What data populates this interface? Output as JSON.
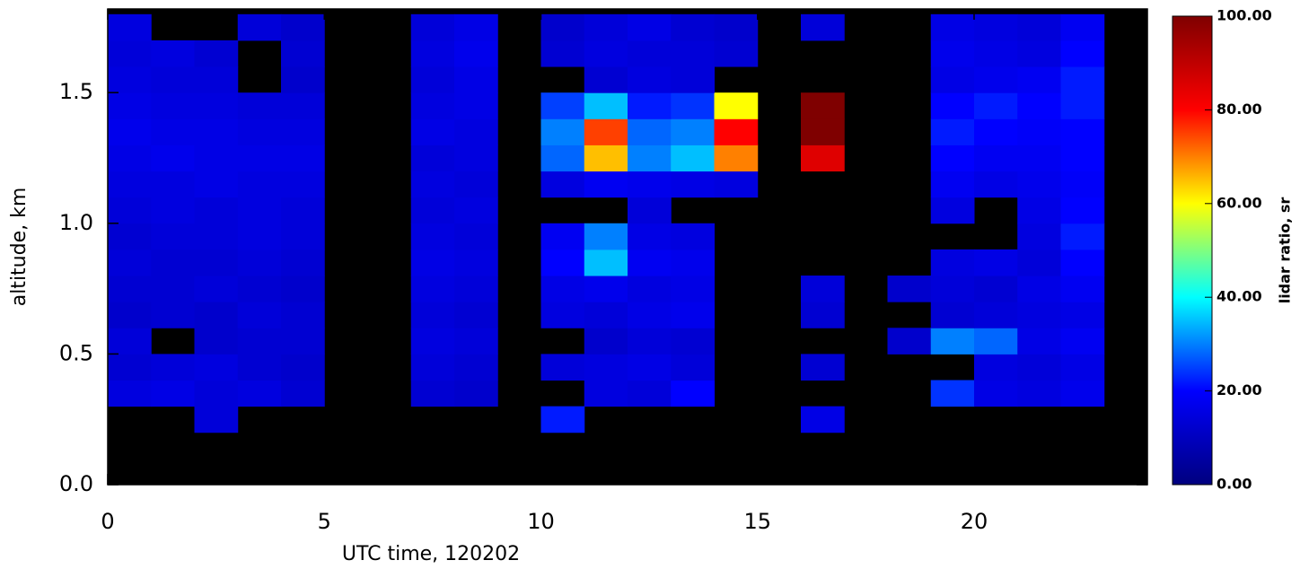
{
  "chart_data": {
    "type": "heatmap",
    "x_label": "UTC time, 120202",
    "y_label": "altitude, km",
    "colorbar_label": "lidar ratio, sr",
    "xbins": [
      0,
      1,
      2,
      3,
      4,
      5,
      6,
      7,
      8,
      9,
      10,
      11,
      12,
      13,
      14,
      15,
      16,
      17,
      18,
      19,
      20,
      21,
      22,
      23,
      24
    ],
    "ybins": [
      0.2,
      0.3,
      0.4,
      0.5,
      0.6,
      0.7,
      0.8,
      0.9,
      1.0,
      1.1,
      1.2,
      1.3,
      1.4,
      1.5,
      1.6,
      1.7,
      1.8
    ],
    "z": [
      [
        null,
        null,
        14,
        null,
        null,
        null,
        null,
        null,
        null,
        null,
        22,
        null,
        null,
        null,
        null,
        null,
        16,
        null,
        null,
        null,
        null,
        null,
        null,
        null
      ],
      [
        15,
        16,
        14,
        15,
        13,
        null,
        null,
        13,
        12,
        null,
        null,
        15,
        14,
        20,
        null,
        null,
        null,
        null,
        null,
        24,
        16,
        15,
        17,
        null
      ],
      [
        13,
        14,
        15,
        13,
        12,
        null,
        null,
        14,
        13,
        null,
        14,
        15,
        16,
        14,
        null,
        null,
        13,
        null,
        null,
        null,
        15,
        14,
        16,
        null
      ],
      [
        14,
        null,
        12,
        13,
        13,
        null,
        null,
        15,
        14,
        null,
        null,
        12,
        14,
        13,
        null,
        null,
        null,
        null,
        12,
        30,
        28,
        16,
        18,
        null
      ],
      [
        12,
        13,
        12,
        14,
        13,
        null,
        null,
        14,
        13,
        null,
        15,
        14,
        16,
        17,
        null,
        null,
        13,
        null,
        null,
        13,
        14,
        15,
        16,
        null
      ],
      [
        13,
        13,
        14,
        13,
        12,
        null,
        null,
        15,
        14,
        null,
        16,
        17,
        15,
        16,
        null,
        null,
        14,
        null,
        12,
        14,
        13,
        16,
        18,
        null
      ],
      [
        14,
        13,
        13,
        14,
        13,
        null,
        null,
        16,
        15,
        null,
        20,
        35,
        18,
        17,
        null,
        null,
        null,
        null,
        null,
        15,
        16,
        14,
        20,
        null
      ],
      [
        13,
        14,
        14,
        15,
        14,
        null,
        null,
        15,
        14,
        null,
        18,
        30,
        16,
        15,
        null,
        null,
        null,
        null,
        null,
        null,
        null,
        15,
        22,
        null
      ],
      [
        14,
        15,
        14,
        15,
        14,
        null,
        null,
        14,
        15,
        null,
        null,
        null,
        14,
        null,
        null,
        null,
        null,
        null,
        null,
        15,
        null,
        16,
        20,
        null
      ],
      [
        15,
        15,
        16,
        15,
        15,
        null,
        null,
        15,
        14,
        null,
        15,
        18,
        17,
        16,
        15,
        null,
        null,
        null,
        null,
        18,
        16,
        17,
        19,
        null
      ],
      [
        16,
        17,
        16,
        16,
        16,
        null,
        null,
        14,
        15,
        null,
        28,
        65,
        30,
        35,
        70,
        null,
        85,
        null,
        null,
        20,
        18,
        18,
        20,
        null
      ],
      [
        17,
        16,
        16,
        15,
        15,
        null,
        null,
        16,
        15,
        null,
        30,
        75,
        28,
        30,
        80,
        null,
        100,
        null,
        null,
        22,
        20,
        19,
        20,
        null
      ],
      [
        16,
        15,
        15,
        14,
        14,
        null,
        null,
        15,
        16,
        null,
        25,
        35,
        22,
        24,
        60,
        null,
        100,
        null,
        null,
        20,
        22,
        20,
        22,
        null
      ],
      [
        15,
        14,
        14,
        null,
        12,
        null,
        null,
        14,
        16,
        null,
        null,
        13,
        15,
        14,
        null,
        null,
        null,
        null,
        null,
        16,
        17,
        18,
        22,
        null
      ],
      [
        14,
        15,
        13,
        null,
        13,
        null,
        null,
        15,
        17,
        null,
        13,
        15,
        14,
        14,
        13,
        null,
        null,
        null,
        null,
        17,
        16,
        15,
        20,
        null
      ],
      [
        15,
        null,
        null,
        14,
        12,
        null,
        null,
        14,
        16,
        null,
        12,
        14,
        16,
        13,
        12,
        null,
        14,
        null,
        null,
        16,
        15,
        14,
        18,
        null
      ]
    ],
    "xlim": [
      0,
      24
    ],
    "xticks": [
      0,
      5,
      10,
      15,
      20
    ],
    "ylim": [
      0,
      1.82
    ],
    "yticks": [
      {
        "value": 0,
        "label": "0.0"
      },
      {
        "value": 0.5,
        "label": "0.5"
      },
      {
        "value": 1,
        "label": "1.0"
      },
      {
        "value": 1.5,
        "label": "1.5"
      }
    ],
    "zlim": [
      0,
      100
    ],
    "zticks": [
      {
        "value": 0,
        "label": "0.00"
      },
      {
        "value": 20,
        "label": "20.00"
      },
      {
        "value": 40,
        "label": "40.00"
      },
      {
        "value": 60,
        "label": "60.00"
      },
      {
        "value": 80,
        "label": "80.00"
      },
      {
        "value": 100,
        "label": "100.00"
      }
    ],
    "colorscale": [
      "#00007f",
      "#0000ff",
      "#00ffff",
      "#ffff00",
      "#ff0000",
      "#7f0000"
    ],
    "background": "#000000"
  }
}
